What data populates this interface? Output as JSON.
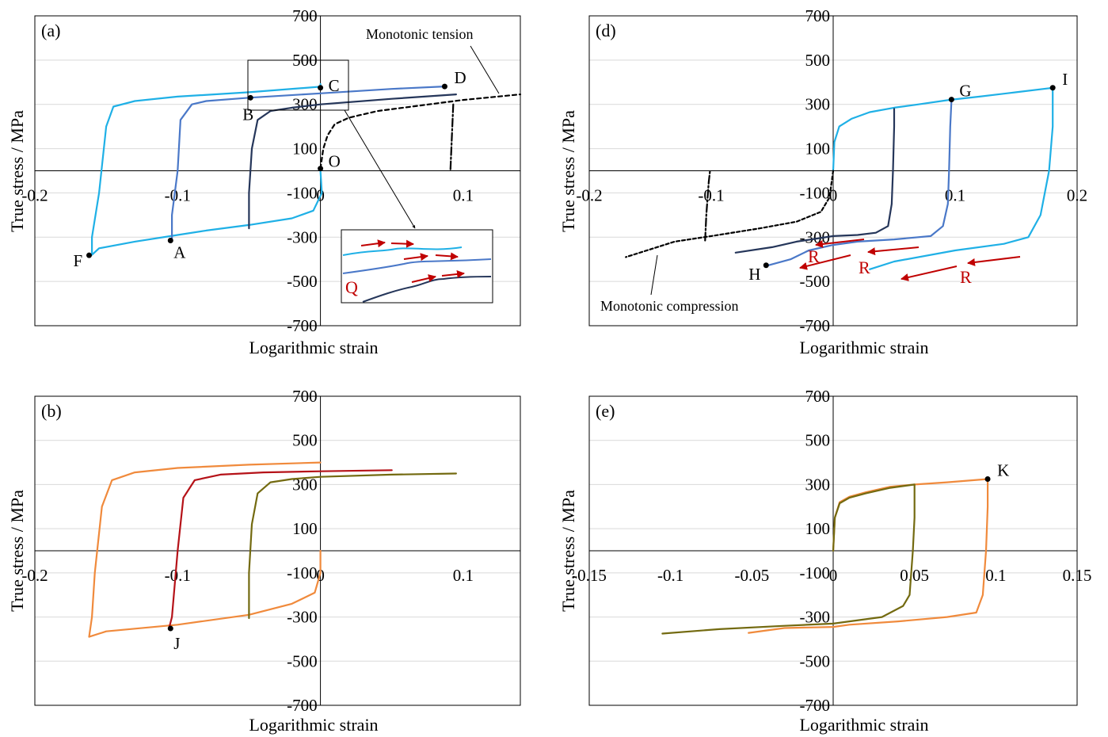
{
  "colors": {
    "light_blue": "#1fb0e6",
    "mid_blue": "#4a78c8",
    "dark_navy": "#25365a",
    "black": "#000000",
    "orange": "#f08a3c",
    "dark_red": "#b51218",
    "olive": "#736a10",
    "red_arrow": "#c00000",
    "grid": "#d9d9d9"
  },
  "chart_data": [
    {
      "id": "a",
      "type": "line",
      "panel_label": "(a)",
      "xlabel": "Logarithmic strain",
      "ylabel": "True stress / MPa",
      "xlim": [
        -0.2,
        0.14
      ],
      "ylim": [
        -700,
        700
      ],
      "xticks": [
        -0.2,
        -0.1,
        0,
        0.1
      ],
      "xtick_labels": [
        "-0.2",
        "-0.1",
        "0",
        "0.1"
      ],
      "yticks": [
        -700,
        -500,
        -300,
        -100,
        100,
        300,
        500,
        700
      ],
      "ytick_labels": [
        "-700",
        "-500",
        "-300",
        "-100",
        "100",
        "300",
        "500",
        "700"
      ],
      "series": [
        {
          "color_key": "light_blue",
          "dash": "",
          "points": [
            [
              0,
              0
            ],
            [
              0.001,
              -100
            ],
            [
              -0.005,
              -180
            ],
            [
              -0.02,
              -215
            ],
            [
              -0.05,
              -245
            ],
            [
              -0.08,
              -270
            ],
            [
              -0.1,
              -290
            ],
            [
              -0.13,
              -320
            ],
            [
              -0.155,
              -350
            ],
            [
              -0.16,
              -380
            ],
            [
              -0.16,
              -300
            ],
            [
              -0.155,
              -100
            ],
            [
              -0.15,
              200
            ],
            [
              -0.145,
              290
            ],
            [
              -0.13,
              315
            ],
            [
              -0.1,
              335
            ],
            [
              -0.05,
              355
            ],
            [
              0,
              380
            ],
            [
              0,
              392
            ]
          ]
        },
        {
          "color_key": "mid_blue",
          "dash": "",
          "points": [
            [
              -0.104,
              -315
            ],
            [
              -0.104,
              -200
            ],
            [
              -0.1,
              0
            ],
            [
              -0.098,
              230
            ],
            [
              -0.09,
              300
            ],
            [
              -0.08,
              315
            ],
            [
              -0.05,
              330
            ],
            [
              0,
              350
            ],
            [
              0.05,
              370
            ],
            [
              0.087,
              381
            ]
          ]
        },
        {
          "color_key": "dark_navy",
          "dash": "",
          "points": [
            [
              -0.05,
              -260
            ],
            [
              -0.05,
              -100
            ],
            [
              -0.048,
              100
            ],
            [
              -0.044,
              230
            ],
            [
              -0.035,
              270
            ],
            [
              -0.02,
              285
            ],
            [
              0,
              300
            ],
            [
              0.05,
              325
            ],
            [
              0.095,
              345
            ]
          ]
        },
        {
          "color_key": "black",
          "dash": "5,4",
          "points": [
            [
              0,
              10
            ],
            [
              0.002,
              100
            ],
            [
              0.005,
              160
            ],
            [
              0.01,
              210
            ],
            [
              0.02,
              240
            ],
            [
              0.04,
              270
            ],
            [
              0.07,
              295
            ],
            [
              0.1,
              320
            ],
            [
              0.14,
              345
            ]
          ]
        },
        {
          "color_key": "black",
          "dash": "10,3,2,3",
          "points": [
            [
              0.093,
              300
            ],
            [
              0.092,
              150
            ],
            [
              0.091,
              0
            ]
          ]
        }
      ],
      "points": [
        {
          "label": "A",
          "x": -0.105,
          "y": -315,
          "label_dx": 4,
          "label_dy": 22
        },
        {
          "label": "B",
          "x": -0.049,
          "y": 330,
          "label_dx": -10,
          "label_dy": 28
        },
        {
          "label": "C",
          "x": 0,
          "y": 375,
          "label_dx": 10,
          "label_dy": 4
        },
        {
          "label": "D",
          "x": 0.087,
          "y": 381,
          "label_dx": 12,
          "label_dy": -4
        },
        {
          "label": "F",
          "x": -0.162,
          "y": -382,
          "label_dx": -20,
          "label_dy": 14
        },
        {
          "label": "O",
          "x": 0,
          "y": 10,
          "label_dx": 10,
          "label_dy": -2
        }
      ],
      "annotations": [
        {
          "text": "Monotonic tension"
        },
        {
          "text": "Q"
        }
      ]
    },
    {
      "id": "b",
      "type": "line",
      "panel_label": "(b)",
      "xlabel": "Logarithmic strain",
      "ylabel": "True stress / MPa",
      "xlim": [
        -0.2,
        0.14
      ],
      "ylim": [
        -700,
        700
      ],
      "xticks": [
        -0.2,
        -0.1,
        0,
        0.1
      ],
      "xtick_labels": [
        "-0.2",
        "-0.1",
        "0",
        "0.1"
      ],
      "yticks": [
        -700,
        -500,
        -300,
        -100,
        100,
        300,
        500,
        700
      ],
      "ytick_labels": [
        "-700",
        "-500",
        "-300",
        "-100",
        "100",
        "300",
        "500",
        "700"
      ],
      "series": [
        {
          "color_key": "orange",
          "dash": "",
          "points": [
            [
              0,
              0
            ],
            [
              0,
              -100
            ],
            [
              -0.004,
              -190
            ],
            [
              -0.02,
              -240
            ],
            [
              -0.05,
              -290
            ],
            [
              -0.1,
              -335
            ],
            [
              -0.15,
              -365
            ],
            [
              -0.162,
              -390
            ],
            [
              -0.16,
              -300
            ],
            [
              -0.158,
              -100
            ],
            [
              -0.153,
              200
            ],
            [
              -0.146,
              320
            ],
            [
              -0.13,
              355
            ],
            [
              -0.1,
              375
            ],
            [
              -0.05,
              390
            ],
            [
              0,
              400
            ]
          ]
        },
        {
          "color_key": "dark_red",
          "dash": "",
          "points": [
            [
              -0.106,
              -350
            ],
            [
              -0.104,
              -300
            ],
            [
              -0.1,
              0
            ],
            [
              -0.096,
              240
            ],
            [
              -0.088,
              320
            ],
            [
              -0.07,
              345
            ],
            [
              -0.04,
              355
            ],
            [
              0,
              360
            ],
            [
              0.05,
              365
            ]
          ]
        },
        {
          "color_key": "olive",
          "dash": "",
          "points": [
            [
              -0.05,
              -305
            ],
            [
              -0.05,
              -100
            ],
            [
              -0.048,
              120
            ],
            [
              -0.044,
              260
            ],
            [
              -0.035,
              310
            ],
            [
              -0.02,
              325
            ],
            [
              0,
              335
            ],
            [
              0.05,
              345
            ],
            [
              0.095,
              350
            ]
          ]
        }
      ],
      "points": [
        {
          "label": "J",
          "x": -0.105,
          "y": -352,
          "label_dx": 4,
          "label_dy": 26
        }
      ],
      "annotations": []
    },
    {
      "id": "d",
      "type": "line",
      "panel_label": "(d)",
      "xlabel": "Logarithmic strain",
      "ylabel": "True stress / MPa",
      "xlim": [
        -0.2,
        0.2
      ],
      "ylim": [
        -700,
        700
      ],
      "xticks": [
        -0.2,
        -0.1,
        0,
        0.1,
        0.2
      ],
      "xtick_labels": [
        "-0.2",
        "-0.1",
        "0",
        "0.1",
        "0.2"
      ],
      "yticks": [
        -700,
        -500,
        -300,
        -100,
        100,
        300,
        500,
        700
      ],
      "ytick_labels": [
        "-700",
        "-500",
        "-300",
        "-100",
        "100",
        "300",
        "500",
        "700"
      ],
      "series": [
        {
          "color_key": "light_blue",
          "dash": "",
          "points": [
            [
              0,
              0
            ],
            [
              0.001,
              130
            ],
            [
              0.005,
              200
            ],
            [
              0.015,
              235
            ],
            [
              0.03,
              265
            ],
            [
              0.05,
              285
            ],
            [
              0.07,
              300
            ],
            [
              0.095,
              320
            ],
            [
              0.12,
              335
            ],
            [
              0.15,
              355
            ],
            [
              0.18,
              375
            ],
            [
              0.18,
              200
            ],
            [
              0.177,
              0
            ],
            [
              0.17,
              -200
            ],
            [
              0.16,
              -300
            ],
            [
              0.14,
              -330
            ],
            [
              0.1,
              -360
            ],
            [
              0.05,
              -410
            ],
            [
              0.03,
              -445
            ]
          ]
        },
        {
          "color_key": "mid_blue",
          "dash": "",
          "points": [
            [
              0.097,
              320
            ],
            [
              0.096,
              200
            ],
            [
              0.095,
              0
            ],
            [
              0.094,
              -150
            ],
            [
              0.09,
              -250
            ],
            [
              0.08,
              -295
            ],
            [
              0.05,
              -310
            ],
            [
              0.02,
              -320
            ],
            [
              0,
              -335
            ],
            [
              -0.02,
              -360
            ],
            [
              -0.035,
              -400
            ],
            [
              -0.055,
              -430
            ]
          ]
        },
        {
          "color_key": "dark_navy",
          "dash": "",
          "points": [
            [
              0.05,
              280
            ],
            [
              0.05,
              200
            ],
            [
              0.049,
              0
            ],
            [
              0.048,
              -150
            ],
            [
              0.045,
              -250
            ],
            [
              0.035,
              -280
            ],
            [
              0.02,
              -290
            ],
            [
              0,
              -295
            ],
            [
              -0.03,
              -320
            ],
            [
              -0.05,
              -345
            ],
            [
              -0.08,
              -370
            ]
          ]
        },
        {
          "color_key": "black",
          "dash": "4,3",
          "points": [
            [
              0,
              0
            ],
            [
              -0.003,
              -120
            ],
            [
              -0.01,
              -185
            ],
            [
              -0.03,
              -230
            ],
            [
              -0.06,
              -260
            ],
            [
              -0.1,
              -295
            ],
            [
              -0.13,
              -320
            ],
            [
              -0.17,
              -390
            ]
          ]
        },
        {
          "color_key": "black",
          "dash": "10,3,2,3",
          "points": [
            [
              -0.105,
              -315
            ],
            [
              -0.104,
              -200
            ],
            [
              -0.102,
              -50
            ],
            [
              -0.101,
              0
            ]
          ]
        }
      ],
      "points": [
        {
          "label": "G",
          "x": 0.097,
          "y": 322,
          "label_dx": 10,
          "label_dy": -4
        },
        {
          "label": "H",
          "x": -0.055,
          "y": -427,
          "label_dx": -22,
          "label_dy": 18
        },
        {
          "label": "I",
          "x": 0.18,
          "y": 375,
          "label_dx": 12,
          "label_dy": -4
        }
      ],
      "annotations": [
        {
          "text": "Monotonic compression"
        },
        {
          "text": "R"
        },
        {
          "text": "R"
        },
        {
          "text": "R"
        }
      ]
    },
    {
      "id": "e",
      "type": "line",
      "panel_label": "(e)",
      "xlabel": "Logarithmic strain",
      "ylabel": "True,stress / MPa",
      "xlim": [
        -0.15,
        0.15
      ],
      "ylim": [
        -700,
        700
      ],
      "xticks": [
        -0.15,
        -0.1,
        -0.05,
        0,
        0.05,
        0.1,
        0.15
      ],
      "xtick_labels": [
        "-0.15",
        "-0.1",
        "-0.05",
        "0",
        "0.05",
        "0.1",
        "0.15"
      ],
      "yticks": [
        -700,
        -500,
        -300,
        -100,
        100,
        300,
        500,
        700
      ],
      "ytick_labels": [
        "-700",
        "-500",
        "-300",
        "-100",
        "100",
        "300",
        "500",
        "700"
      ],
      "series": [
        {
          "color_key": "orange",
          "dash": "",
          "points": [
            [
              0,
              0
            ],
            [
              0.001,
              150
            ],
            [
              0.004,
              220
            ],
            [
              0.01,
              245
            ],
            [
              0.02,
              265
            ],
            [
              0.035,
              290
            ],
            [
              0.05,
              300
            ],
            [
              0.07,
              310
            ],
            [
              0.095,
              325
            ],
            [
              0.095,
              200
            ],
            [
              0.094,
              0
            ],
            [
              0.092,
              -200
            ],
            [
              0.088,
              -280
            ],
            [
              0.07,
              -300
            ],
            [
              0.04,
              -320
            ],
            [
              0.01,
              -335
            ],
            [
              0,
              -345
            ],
            [
              -0.03,
              -350
            ],
            [
              -0.052,
              -372
            ]
          ]
        },
        {
          "color_key": "olive",
          "dash": "",
          "points": [
            [
              0,
              0
            ],
            [
              0.001,
              150
            ],
            [
              0.004,
              215
            ],
            [
              0.01,
              240
            ],
            [
              0.02,
              260
            ],
            [
              0.035,
              285
            ],
            [
              0.05,
              300
            ],
            [
              0.05,
              150
            ],
            [
              0.049,
              0
            ],
            [
              0.047,
              -200
            ],
            [
              0.043,
              -250
            ],
            [
              0.03,
              -300
            ],
            [
              0.01,
              -320
            ],
            [
              0,
              -330
            ],
            [
              -0.03,
              -340
            ],
            [
              -0.07,
              -355
            ],
            [
              -0.105,
              -375
            ]
          ]
        }
      ],
      "points": [
        {
          "label": "K",
          "x": 0.095,
          "y": 325,
          "label_dx": 12,
          "label_dy": -4
        }
      ],
      "annotations": []
    }
  ]
}
